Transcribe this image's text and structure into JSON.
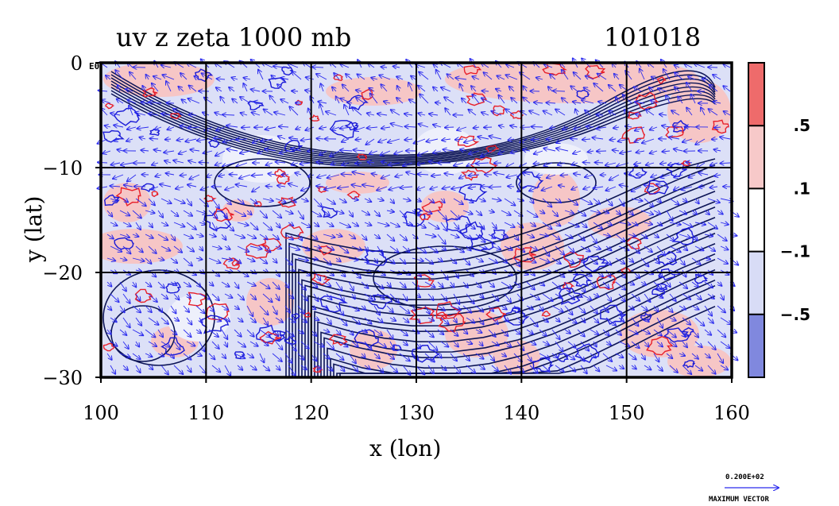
{
  "chart_data": {
    "type": "heatmap",
    "title_left": "uv z zeta 1000 mb",
    "title_right": "101018",
    "xlabel": "x (lon)",
    "ylabel": "y (lat)",
    "xlim": [
      100,
      160
    ],
    "ylim": [
      -30,
      0
    ],
    "x_ticks": [
      {
        "value": 100,
        "label": "100"
      },
      {
        "value": 110,
        "label": "110"
      },
      {
        "value": 120,
        "label": "120"
      },
      {
        "value": 130,
        "label": "130"
      },
      {
        "value": 140,
        "label": "140"
      },
      {
        "value": 150,
        "label": "150"
      },
      {
        "value": 160,
        "label": "160"
      }
    ],
    "y_ticks": [
      {
        "value": 0,
        "label": "0"
      },
      {
        "value": -10,
        "label": "−10"
      },
      {
        "value": -20,
        "label": "−20"
      },
      {
        "value": -30,
        "label": "−30"
      }
    ],
    "y_top_suffix": "E0",
    "grid": true,
    "grid_lons": [
      110,
      120,
      130,
      140,
      150
    ],
    "grid_lats": [
      -10,
      -20
    ],
    "colorbar": {
      "labels": [
        ".5",
        ".1",
        "−.1",
        "−.5"
      ],
      "levels": [
        0.5,
        0.1,
        -0.1,
        -0.5
      ],
      "colors": [
        "#ee6b6b",
        "#f7c9c9",
        "#ffffff",
        "#d8dcf6",
        "#8088de"
      ]
    },
    "colors": {
      "positive_contour": "#e8202a",
      "negative_contour": "#1a1ad6",
      "height_contour": "#0c1456",
      "wind_vector": "#2a2aee",
      "background_fill": "#dce0f7",
      "positive_fill": "#f6c6c6"
    },
    "vector_key": {
      "value_label": "0.200E+02",
      "caption": "MAXIMUM VECTOR"
    }
  }
}
